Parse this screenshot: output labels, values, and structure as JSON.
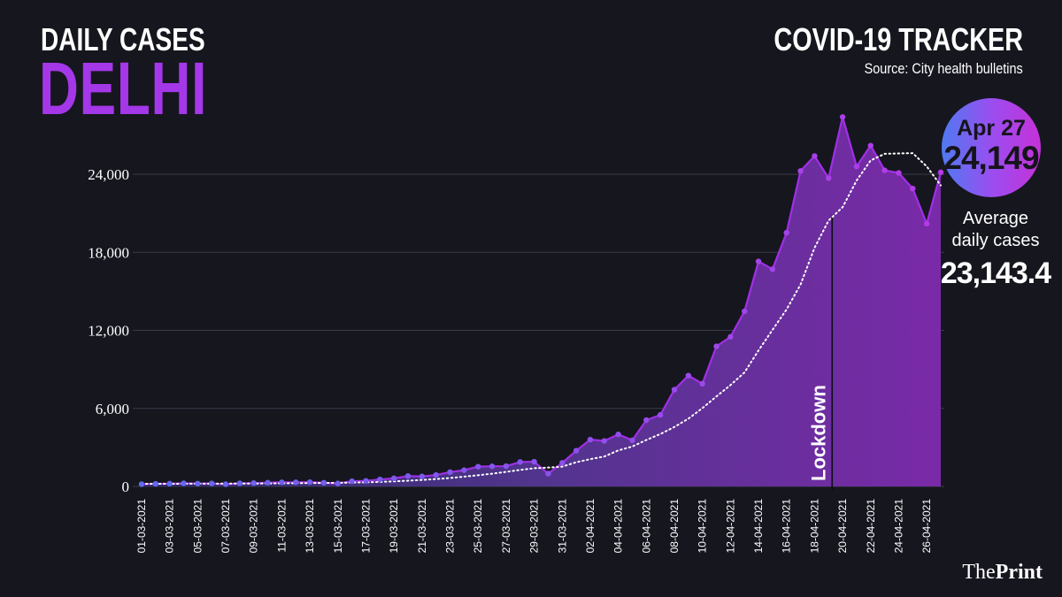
{
  "header": {
    "title_line1": "DAILY CASES",
    "title_line2": "DELHI",
    "tracker": "COVID-19 TRACKER",
    "source": "Source: City health bulletins"
  },
  "badge": {
    "date": "Apr 27",
    "value": "24,149",
    "avg_label_1": "Average",
    "avg_label_2": "daily cases",
    "avg_value": "23,143.4"
  },
  "branding": {
    "the": "The",
    "print": "Print"
  },
  "colors": {
    "background": "#16161f",
    "area_start": "#48409e",
    "area_end": "#7d2aa8",
    "line": "#a12fe6",
    "marker_start": "#5f6bf0",
    "marker_end": "#b43ae6",
    "moving_average": "#ffffff",
    "title_accent": "#a437e8"
  },
  "chart_data": {
    "type": "line",
    "xlabel": "",
    "ylabel": "",
    "x": [
      "01-03-2021",
      "02-03-2021",
      "03-03-2021",
      "04-03-2021",
      "05-03-2021",
      "06-03-2021",
      "07-03-2021",
      "08-03-2021",
      "09-03-2021",
      "10-03-2021",
      "11-03-2021",
      "12-03-2021",
      "13-03-2021",
      "14-03-2021",
      "15-03-2021",
      "16-03-2021",
      "17-03-2021",
      "18-03-2021",
      "19-03-2021",
      "20-03-2021",
      "21-03-2021",
      "22-03-2021",
      "23-03-2021",
      "24-03-2021",
      "25-03-2021",
      "26-03-2021",
      "27-03-2021",
      "28-03-2021",
      "29-03-2021",
      "30-03-2021",
      "31-03-2021",
      "01-04-2021",
      "02-04-2021",
      "03-04-2021",
      "04-04-2021",
      "05-04-2021",
      "06-04-2021",
      "07-04-2021",
      "08-04-2021",
      "09-04-2021",
      "10-04-2021",
      "11-04-2021",
      "12-04-2021",
      "13-04-2021",
      "14-04-2021",
      "15-04-2021",
      "16-04-2021",
      "17-04-2021",
      "18-04-2021",
      "19-04-2021",
      "20-04-2021",
      "21-04-2021",
      "22-04-2021",
      "23-04-2021",
      "24-04-2021",
      "25-04-2021",
      "26-04-2021",
      "27-04-2021"
    ],
    "tick_labels": [
      "01-03-2021",
      "03-03-2021",
      "05-03-2021",
      "07-03-2021",
      "09-03-2021",
      "11-03-2021",
      "13-03-2021",
      "15-03-2021",
      "17-03-2021",
      "19-03-2021",
      "21-03-2021",
      "23-03-2021",
      "25-03-2021",
      "27-03-2021",
      "29-03-2021",
      "31-03-2021",
      "02-04-2021",
      "04-04-2021",
      "06-04-2021",
      "08-04-2021",
      "10-04-2021",
      "12-04-2021",
      "14-04-2021",
      "16-04-2021",
      "18-04-2021",
      "20-04-2021",
      "22-04-2021",
      "24-04-2021",
      "26-04-2021"
    ],
    "yticks": [
      0,
      6000,
      12000,
      18000,
      24000
    ],
    "ytick_labels": [
      "0",
      "6,000",
      "12,000",
      "18,000",
      "24,000"
    ],
    "ylim": [
      0,
      24000
    ],
    "grid": true,
    "series": [
      {
        "values": [
          175,
          200,
          215,
          240,
          220,
          230,
          170,
          240,
          260,
          290,
          320,
          320,
          330,
          280,
          230,
          400,
          430,
          540,
          620,
          800,
          770,
          880,
          1100,
          1250,
          1520,
          1550,
          1560,
          1880,
          1900,
          990,
          1810,
          2750,
          3600,
          3500,
          4000,
          3550,
          5100,
          5500,
          7440,
          8520,
          7900,
          10770,
          11500,
          13460,
          17300,
          16700,
          19500,
          24250,
          25400,
          23700,
          28400,
          24600,
          26200,
          24300,
          24100,
          22900,
          20200,
          24149
        ]
      },
      {
        "values": [
          200,
          200,
          200,
          210,
          210,
          210,
          220,
          220,
          220,
          230,
          240,
          250,
          260,
          270,
          280,
          300,
          320,
          350,
          390,
          440,
          500,
          570,
          650,
          750,
          860,
          980,
          1120,
          1270,
          1400,
          1450,
          1520,
          1860,
          2100,
          2300,
          2770,
          3070,
          3570,
          4030,
          4570,
          5210,
          6020,
          6920,
          7790,
          8760,
          10450,
          12040,
          13600,
          15520,
          18350,
          20440,
          21470,
          23520,
          25060,
          25570,
          25600,
          25620,
          24600,
          23143.4
        ]
      }
    ],
    "annotations": [
      {
        "text": "Lockdown",
        "x": "19-04-2021"
      }
    ]
  }
}
